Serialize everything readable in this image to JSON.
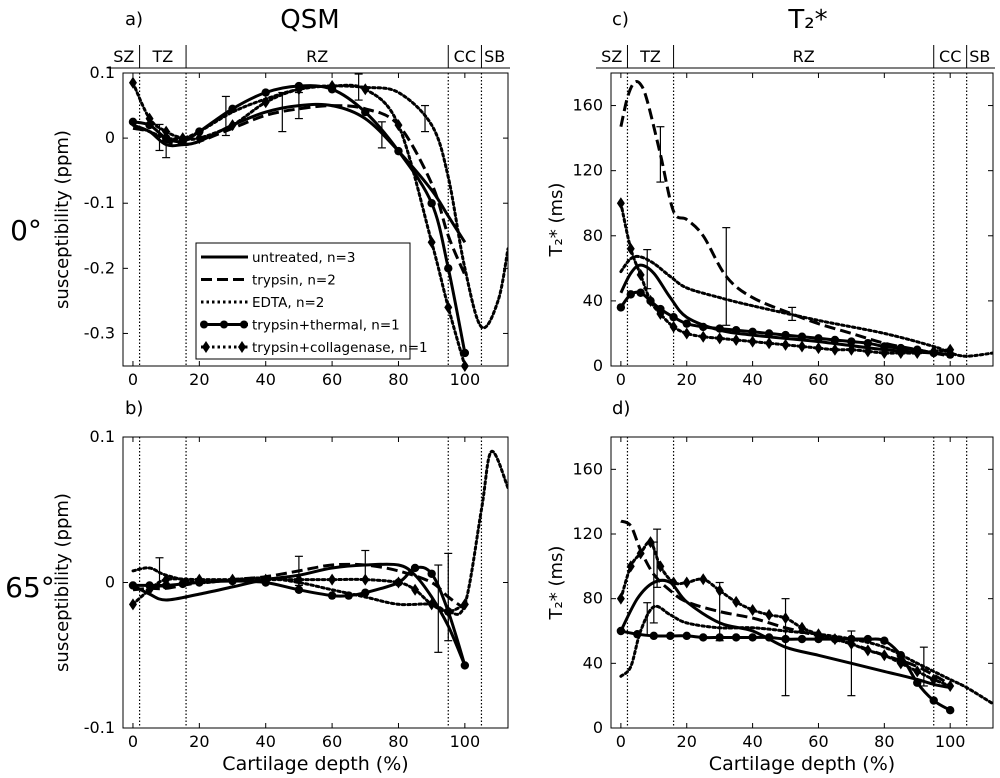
{
  "figure": {
    "column_titles": [
      "QSM",
      "T₂*"
    ],
    "row_labels": [
      "0°",
      "65°"
    ],
    "zones": [
      "SZ",
      "TZ",
      "RZ",
      "CC",
      "SB"
    ],
    "boundaries": [
      2,
      16,
      95,
      105
    ],
    "colors": {
      "ink": "#000000",
      "background": "#ffffff"
    }
  },
  "legend": {
    "items": [
      {
        "label": "untreated, n=3",
        "style": "solid",
        "marker": "none"
      },
      {
        "label": "trypsin, n=2",
        "style": "dash",
        "marker": "none"
      },
      {
        "label": "EDTA, n=2",
        "style": "dot",
        "marker": "none"
      },
      {
        "label": "trypsin+thermal, n=1",
        "style": "solid",
        "marker": "circle"
      },
      {
        "label": "trypsin+collagenase, n=1",
        "style": "dot",
        "marker": "diamond"
      }
    ]
  },
  "chart_data": [
    {
      "type": "line",
      "panel": "a)",
      "ylabel": "susceptibility (ppm)",
      "xlabel": "",
      "xlim": [
        -3,
        113
      ],
      "ylim": [
        -0.35,
        0.1
      ],
      "xticks": [
        0,
        20,
        40,
        60,
        80,
        100
      ],
      "yticks": [
        0.1,
        0,
        -0.1,
        -0.2,
        -0.3
      ],
      "yticklabels": [
        "0.1",
        "0",
        "-0.1",
        "-0.2",
        "-0.3"
      ],
      "series": [
        {
          "name": "untreated, n=3",
          "x": [
            0,
            5,
            10,
            15,
            20,
            30,
            40,
            50,
            60,
            70,
            80,
            90,
            95,
            100
          ],
          "y": [
            0.02,
            0.01,
            -0.01,
            -0.01,
            -0.005,
            0.02,
            0.04,
            0.05,
            0.05,
            0.03,
            -0.02,
            -0.08,
            -0.12,
            -0.16
          ],
          "errorbars": [
            {
              "x": 10,
              "err": 0.02
            },
            {
              "x": 50,
              "err": 0.02
            },
            {
              "x": 75,
              "err": 0.02
            }
          ]
        },
        {
          "name": "trypsin, n=2",
          "x": [
            0,
            5,
            10,
            15,
            20,
            30,
            40,
            50,
            60,
            70,
            80,
            90,
            95,
            100
          ],
          "y": [
            0.015,
            0.01,
            -0.005,
            -0.01,
            -0.005,
            0.015,
            0.035,
            0.045,
            0.05,
            0.045,
            0.02,
            -0.07,
            -0.15,
            -0.21
          ],
          "errorbars": [
            {
              "x": 8,
              "err": 0.02
            },
            {
              "x": 45,
              "err": 0.03
            }
          ]
        },
        {
          "name": "EDTA, n=2",
          "x": [
            0,
            5,
            10,
            15,
            20,
            30,
            40,
            50,
            60,
            70,
            80,
            90,
            95,
            100,
            105,
            110,
            113
          ],
          "y": [
            0.02,
            0.01,
            0.0,
            0.0,
            0.01,
            0.04,
            0.06,
            0.075,
            0.08,
            0.078,
            0.07,
            0.02,
            -0.06,
            -0.2,
            -0.29,
            -0.25,
            -0.17
          ],
          "errorbars": [
            {
              "x": 28,
              "err": 0.03
            },
            {
              "x": 68,
              "err": 0.02
            },
            {
              "x": 88,
              "err": 0.02
            }
          ]
        },
        {
          "name": "trypsin+thermal, n=1",
          "x": [
            0,
            5,
            10,
            15,
            20,
            30,
            40,
            50,
            60,
            70,
            80,
            90,
            95,
            100
          ],
          "y": [
            0.025,
            0.02,
            0.0,
            -0.005,
            0.01,
            0.045,
            0.07,
            0.08,
            0.075,
            0.04,
            -0.02,
            -0.1,
            -0.2,
            -0.33
          ],
          "marker": "circle"
        },
        {
          "name": "trypsin+collagenase, n=1",
          "x": [
            0,
            5,
            10,
            15,
            20,
            30,
            40,
            50,
            60,
            70,
            80,
            90,
            95,
            100
          ],
          "y": [
            0.085,
            0.03,
            0.01,
            0.0,
            0.0,
            0.02,
            0.055,
            0.075,
            0.08,
            0.075,
            0.02,
            -0.16,
            -0.26,
            -0.35
          ],
          "marker": "diamond"
        }
      ]
    },
    {
      "type": "line",
      "panel": "b)",
      "ylabel": "susceptibility (ppm)",
      "xlabel": "Cartilage depth (%)",
      "xlim": [
        -3,
        113
      ],
      "ylim": [
        -0.1,
        0.1
      ],
      "xticks": [
        0,
        20,
        40,
        60,
        80,
        100
      ],
      "yticks": [
        0.1,
        0,
        -0.1
      ],
      "yticklabels": [
        "0.1",
        "0",
        "-0.1"
      ],
      "series": [
        {
          "name": "untreated, n=3",
          "x": [
            0,
            5,
            10,
            20,
            30,
            40,
            50,
            60,
            70,
            80,
            85,
            90,
            95,
            100
          ],
          "y": [
            -0.002,
            -0.008,
            -0.012,
            -0.008,
            -0.003,
            0.002,
            0.005,
            0.01,
            0.012,
            0.012,
            0.005,
            -0.01,
            -0.03,
            -0.057
          ],
          "errorbars": [
            {
              "x": 70,
              "err": 0.01
            },
            {
              "x": 92,
              "err": 0.03
            }
          ]
        },
        {
          "name": "trypsin, n=2",
          "x": [
            0,
            5,
            10,
            20,
            30,
            40,
            50,
            60,
            70,
            80,
            90,
            95,
            100
          ],
          "y": [
            -0.005,
            -0.004,
            -0.004,
            0.0,
            0.002,
            0.004,
            0.008,
            0.012,
            0.012,
            0.008,
            0.0,
            -0.01,
            -0.018
          ],
          "errorbars": [
            {
              "x": 50,
              "err": 0.01
            },
            {
              "x": 95,
              "err": 0.03
            }
          ]
        },
        {
          "name": "EDTA, n=2",
          "x": [
            0,
            5,
            10,
            20,
            30,
            40,
            50,
            60,
            70,
            80,
            90,
            95,
            100,
            105,
            108,
            113
          ],
          "y": [
            0.008,
            0.01,
            0.005,
            0.0,
            0.002,
            0.003,
            0.0,
            -0.005,
            -0.01,
            -0.015,
            -0.015,
            -0.02,
            -0.015,
            0.05,
            0.09,
            0.065
          ],
          "errorbars": [
            {
              "x": 8,
              "err": 0.01
            }
          ]
        },
        {
          "name": "trypsin+thermal, n=1",
          "x": [
            0,
            5,
            10,
            15,
            20,
            30,
            40,
            50,
            60,
            65,
            70,
            80,
            85,
            90,
            95,
            100
          ],
          "y": [
            -0.002,
            -0.002,
            -0.002,
            -0.001,
            0.0,
            0.001,
            0.0,
            -0.005,
            -0.009,
            -0.009,
            -0.007,
            0.0,
            0.01,
            0.006,
            -0.02,
            -0.057
          ],
          "marker": "circle"
        },
        {
          "name": "trypsin+collagenase, n=1",
          "x": [
            0,
            5,
            10,
            20,
            30,
            40,
            50,
            60,
            70,
            80,
            85,
            90,
            95,
            100
          ],
          "y": [
            -0.015,
            -0.005,
            0.002,
            0.002,
            0.002,
            0.002,
            0.002,
            0.002,
            0.002,
            0.0,
            -0.005,
            -0.015,
            -0.02,
            -0.015
          ],
          "marker": "diamond"
        }
      ]
    },
    {
      "type": "line",
      "panel": "c)",
      "ylabel": "T₂* (ms)",
      "xlabel": "",
      "xlim": [
        -3,
        113
      ],
      "ylim": [
        0,
        180
      ],
      "xticks": [
        0,
        20,
        40,
        60,
        80,
        100
      ],
      "yticks": [
        0,
        40,
        80,
        120,
        160
      ],
      "yticklabels": [
        "0",
        "40",
        "80",
        "120",
        "160"
      ],
      "series": [
        {
          "name": "untreated, n=3",
          "x": [
            0,
            3,
            6,
            10,
            15,
            20,
            30,
            40,
            60,
            80,
            95,
            100
          ],
          "y": [
            45,
            57,
            62,
            57,
            42,
            30,
            22,
            19,
            15,
            10,
            8,
            7
          ],
          "errorbars": [
            {
              "x": 8,
              "err": 12
            }
          ]
        },
        {
          "name": "trypsin, n=2",
          "x": [
            0,
            2,
            4,
            6,
            8,
            12,
            16,
            20,
            25,
            32,
            40,
            52,
            60,
            70,
            80,
            90,
            95,
            100
          ],
          "y": [
            147,
            165,
            174,
            173,
            163,
            130,
            95,
            90,
            80,
            55,
            42,
            32,
            26,
            20,
            14,
            10,
            8,
            6
          ],
          "errorbars": [
            {
              "x": 12,
              "err": 17
            },
            {
              "x": 32,
              "err": 30
            },
            {
              "x": 52,
              "err": 4
            }
          ]
        },
        {
          "name": "EDTA, n=2",
          "x": [
            0,
            3,
            6,
            10,
            15,
            20,
            30,
            40,
            60,
            80,
            95,
            100,
            105,
            113
          ],
          "y": [
            58,
            66,
            67,
            63,
            55,
            48,
            42,
            37,
            28,
            20,
            12,
            8,
            6,
            8
          ]
        },
        {
          "name": "trypsin+thermal, n=1",
          "x": [
            0,
            3,
            6,
            9,
            12,
            16,
            20,
            25,
            30,
            35,
            40,
            45,
            50,
            55,
            60,
            65,
            70,
            75,
            80,
            85,
            90,
            95,
            100
          ],
          "y": [
            36,
            44,
            45,
            40,
            35,
            30,
            26,
            24,
            23,
            22,
            21,
            20,
            19,
            18,
            17,
            16,
            15,
            14,
            12,
            11,
            10,
            8,
            7
          ],
          "marker": "circle"
        },
        {
          "name": "trypsin+collagenase, n=1",
          "x": [
            0,
            3,
            6,
            9,
            12,
            16,
            20,
            25,
            30,
            35,
            40,
            45,
            50,
            55,
            60,
            65,
            70,
            75,
            80,
            85,
            90,
            95,
            100
          ],
          "y": [
            100,
            72,
            56,
            40,
            32,
            24,
            20,
            18,
            17,
            16,
            15,
            14,
            13,
            12,
            11,
            10,
            10,
            9,
            8,
            8,
            8,
            9,
            10
          ],
          "marker": "diamond"
        }
      ]
    },
    {
      "type": "line",
      "panel": "d)",
      "ylabel": "T₂* (ms)",
      "xlabel": "Cartilage depth (%)",
      "xlim": [
        -3,
        113
      ],
      "ylim": [
        0,
        180
      ],
      "xticks": [
        0,
        20,
        40,
        60,
        80,
        100
      ],
      "yticks": [
        0,
        40,
        80,
        120,
        160
      ],
      "yticklabels": [
        "0",
        "40",
        "80",
        "120",
        "160"
      ],
      "series": [
        {
          "name": "untreated, n=3",
          "x": [
            0,
            5,
            10,
            15,
            20,
            30,
            40,
            50,
            60,
            70,
            80,
            90,
            95,
            100
          ],
          "y": [
            60,
            80,
            90,
            90,
            78,
            65,
            60,
            50,
            45,
            40,
            35,
            30,
            27,
            25
          ],
          "errorbars": [
            {
              "x": 10,
              "err": 25
            },
            {
              "x": 50,
              "err": 30
            },
            {
              "x": 70,
              "err": 20
            }
          ]
        },
        {
          "name": "trypsin, n=2",
          "x": [
            0,
            3,
            6,
            10,
            15,
            20,
            30,
            40,
            50,
            60,
            70,
            80,
            90,
            100
          ],
          "y": [
            128,
            125,
            110,
            95,
            85,
            78,
            72,
            68,
            62,
            57,
            52,
            45,
            38,
            27
          ],
          "errorbars": [
            {
              "x": 30,
              "err": 18
            }
          ]
        },
        {
          "name": "EDTA, n=2",
          "x": [
            0,
            3,
            6,
            10,
            15,
            20,
            30,
            40,
            50,
            60,
            70,
            80,
            90,
            100,
            105,
            113
          ],
          "y": [
            32,
            38,
            60,
            75,
            70,
            65,
            62,
            62,
            60,
            58,
            55,
            50,
            40,
            30,
            25,
            15
          ],
          "errorbars": [
            {
              "x": 8,
              "err": 10
            },
            {
              "x": 92,
              "err": 12
            }
          ]
        },
        {
          "name": "trypsin+thermal, n=1",
          "x": [
            0,
            5,
            10,
            15,
            20,
            25,
            30,
            35,
            40,
            45,
            50,
            55,
            60,
            65,
            70,
            75,
            80,
            85,
            90,
            95,
            100
          ],
          "y": [
            60,
            58,
            57,
            57,
            57,
            56,
            56,
            56,
            56,
            56,
            55,
            55,
            55,
            55,
            55,
            55,
            54,
            45,
            28,
            17,
            11
          ],
          "marker": "circle"
        },
        {
          "name": "trypsin+collagenase, n=1",
          "x": [
            0,
            3,
            6,
            9,
            12,
            16,
            20,
            25,
            30,
            35,
            40,
            45,
            50,
            55,
            60,
            65,
            70,
            75,
            80,
            85,
            90,
            95,
            100
          ],
          "y": [
            80,
            100,
            108,
            115,
            100,
            90,
            90,
            92,
            85,
            78,
            73,
            70,
            68,
            62,
            58,
            55,
            52,
            48,
            45,
            40,
            35,
            30,
            26
          ],
          "marker": "diamond",
          "errorbars": [
            {
              "x": 11,
              "err": 18
            }
          ]
        }
      ]
    }
  ]
}
